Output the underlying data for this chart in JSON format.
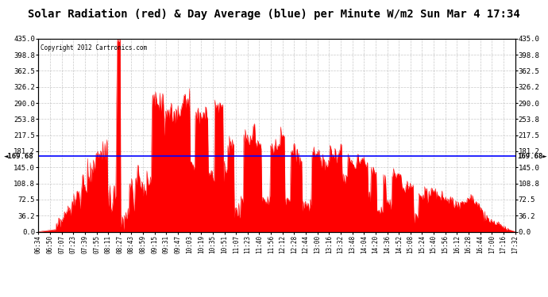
{
  "title": "Solar Radiation (red) & Day Average (blue) per Minute W/m2 Sun Mar 4 17:34",
  "copyright": "Copyright 2012 Cartronics.com",
  "avg_value": 169.68,
  "y_max": 435.0,
  "y_min": 0.0,
  "y_ticks": [
    0.0,
    36.2,
    72.5,
    108.8,
    145.0,
    181.2,
    217.5,
    253.8,
    290.0,
    326.2,
    362.5,
    398.8,
    435.0
  ],
  "y_tick_labels": [
    "0.0",
    "36.2",
    "72.5",
    "108.8",
    "145.0",
    "181.2",
    "217.5",
    "253.8",
    "290.0",
    "326.2",
    "362.5",
    "398.8",
    "435.0"
  ],
  "background_color": "#ffffff",
  "fill_color": "#ff0000",
  "avg_line_color": "#0000ff",
  "grid_color": "#bbbbbb",
  "title_fontsize": 11,
  "x_labels": [
    "06:34",
    "06:50",
    "07:07",
    "07:23",
    "07:39",
    "07:55",
    "08:11",
    "08:27",
    "08:43",
    "08:59",
    "09:15",
    "09:31",
    "09:47",
    "10:03",
    "10:19",
    "10:35",
    "10:51",
    "11:07",
    "11:23",
    "11:40",
    "11:56",
    "12:12",
    "12:28",
    "12:44",
    "13:00",
    "13:16",
    "13:32",
    "13:48",
    "14:04",
    "14:20",
    "14:36",
    "14:52",
    "15:08",
    "15:24",
    "15:40",
    "15:56",
    "16:12",
    "16:28",
    "16:44",
    "17:00",
    "17:16",
    "17:32"
  ]
}
